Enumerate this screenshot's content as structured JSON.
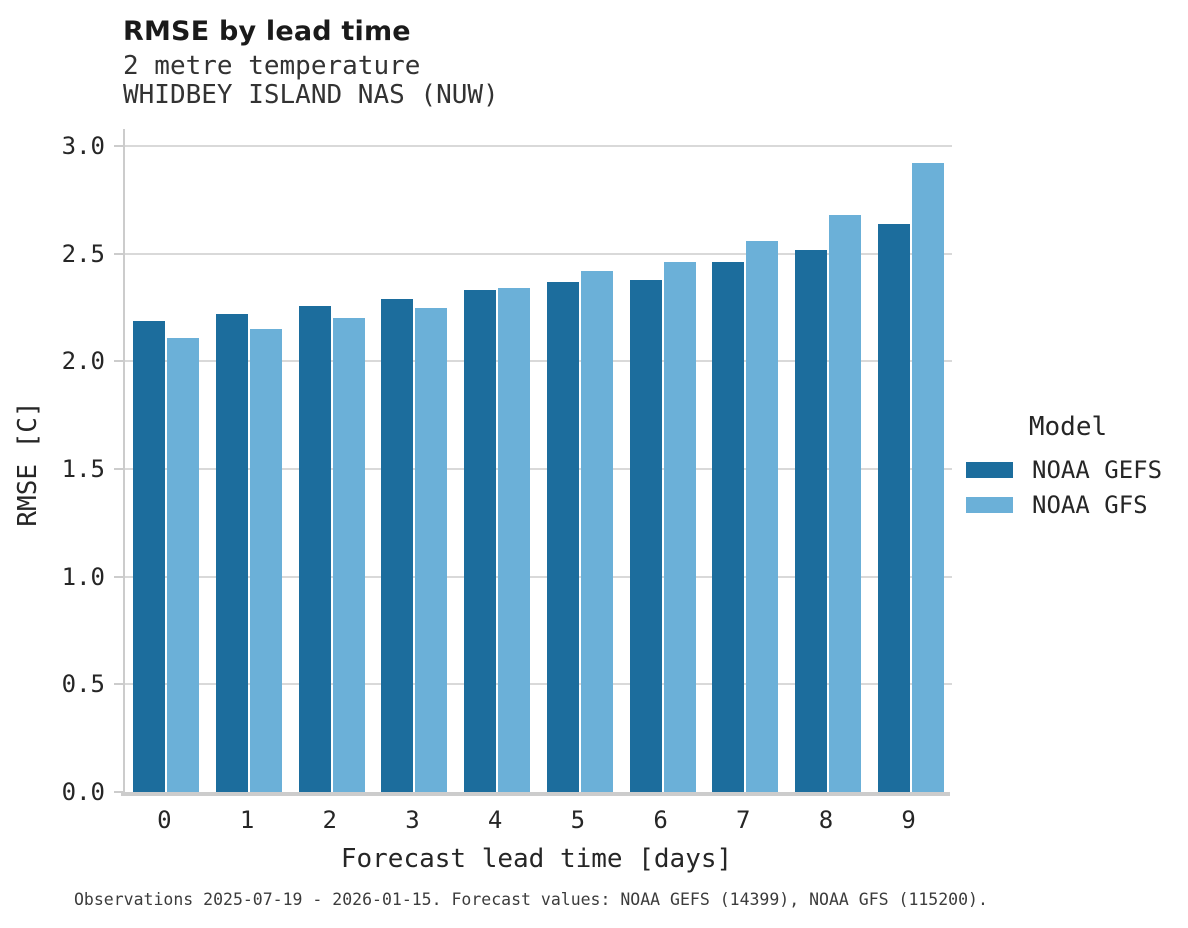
{
  "header": {
    "title": "RMSE by lead time",
    "subtitle_line1": "2 metre temperature",
    "subtitle_line2": "WHIDBEY ISLAND NAS (NUW)"
  },
  "axes": {
    "xlabel": "Forecast lead time [days]",
    "ylabel": "RMSE [C]"
  },
  "legend": {
    "title": "Model",
    "items": [
      {
        "label": "NOAA GEFS",
        "color": "#1c6d9d"
      },
      {
        "label": "NOAA GFS",
        "color": "#6bb0d8"
      }
    ]
  },
  "caption": "Observations 2025-07-19 - 2026-01-15. Forecast values: NOAA GEFS (14399), NOAA GFS (115200).",
  "colors": {
    "gridline": "#d9d9d9",
    "spine": "#cccccc",
    "text": "#262626"
  },
  "chart_data": {
    "type": "bar",
    "title": "RMSE by lead time",
    "subtitle": [
      "2 metre temperature",
      "WHIDBEY ISLAND NAS (NUW)"
    ],
    "xlabel": "Forecast lead time [days]",
    "ylabel": "RMSE [C]",
    "categories": [
      "0",
      "1",
      "2",
      "3",
      "4",
      "5",
      "6",
      "7",
      "8",
      "9"
    ],
    "series": [
      {
        "name": "NOAA GEFS",
        "color": "#1c6d9d",
        "values": [
          2.19,
          2.22,
          2.26,
          2.29,
          2.33,
          2.37,
          2.38,
          2.46,
          2.52,
          2.64
        ]
      },
      {
        "name": "NOAA GFS",
        "color": "#6bb0d8",
        "values": [
          2.11,
          2.15,
          2.2,
          2.25,
          2.34,
          2.42,
          2.46,
          2.56,
          2.68,
          2.92
        ]
      }
    ],
    "ylim": [
      0,
      3.08
    ],
    "yticks": [
      0.0,
      0.5,
      1.0,
      1.5,
      2.0,
      2.5,
      3.0
    ],
    "ytick_labels": [
      "0.0",
      "0.5",
      "1.0",
      "1.5",
      "2.0",
      "2.5",
      "3.0"
    ],
    "grid": "horizontal",
    "legend_title": "Model",
    "legend_position": "right"
  }
}
